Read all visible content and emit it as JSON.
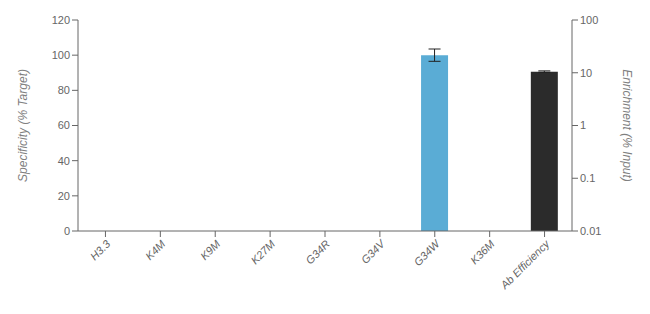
{
  "chart_data": {
    "type": "bar",
    "categories": [
      "H3.3",
      "K4M",
      "K9M",
      "K27M",
      "G34R",
      "G34V",
      "G34W",
      "K36M",
      "Ab Efficiency"
    ],
    "series": [
      {
        "color": "#5aacd5",
        "values": [
          0,
          0,
          0,
          0,
          0,
          0,
          100,
          0,
          null
        ],
        "errors": [
          0,
          0,
          0,
          0,
          0,
          0,
          3.5,
          0,
          null
        ]
      },
      {
        "color": "#2b2b2b",
        "axis": "y2",
        "values": [
          null,
          null,
          null,
          null,
          null,
          null,
          null,
          null,
          10.5
        ],
        "errors": [
          null,
          null,
          null,
          null,
          null,
          null,
          null,
          null,
          0.35
        ]
      }
    ],
    "ylabel": "Specificity (% Target)",
    "y2label": "Enrichment (% Input)",
    "ylim": [
      0,
      120
    ],
    "yticks": [
      0,
      20,
      40,
      60,
      80,
      100,
      120
    ],
    "y2lim": [
      0.01,
      100
    ],
    "y2ticks": [
      0.01,
      0.1,
      1,
      10,
      100
    ],
    "log": "y2",
    "grid": false
  }
}
